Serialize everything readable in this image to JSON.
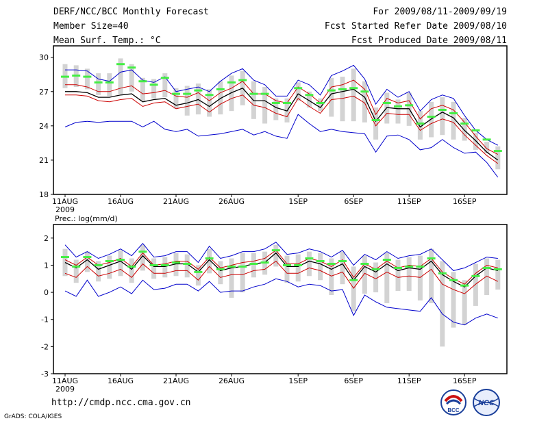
{
  "header": {
    "title": "DERF/NCC/BCC Monthly Forecast",
    "member_size": "Member Size=40",
    "variable": "Mean Surf. Temp.: °C",
    "forecast_period": "For 2009/08/11-2009/09/19",
    "started_refer": "Fcst Started Refer Date 2009/08/10",
    "produced": "Fcst Produced Date 2009/08/11"
  },
  "footer": {
    "url": "http://cmdp.ncc.cma.gov.cn",
    "grads": "GrADS: COLA/IGES",
    "logos": [
      "BCC",
      "NCC"
    ]
  },
  "colors": {
    "box": "#d3d3d3",
    "max_min": "#0000cc",
    "spread": "#cc0000",
    "mean": "#000000",
    "marker": "#44ee44"
  },
  "chart_data": [
    {
      "type": "line",
      "title": "Mean Surf. Temp.: °C",
      "days": 40,
      "x_tick_labels": [
        "11AUG",
        "16AUG",
        "21AUG",
        "26AUG",
        "1SEP",
        "6SEP",
        "11SEP",
        "16SEP"
      ],
      "x_tick_days": [
        0,
        5,
        10,
        15,
        21,
        26,
        31,
        36
      ],
      "year_label": "2009",
      "ylim": [
        18,
        31
      ],
      "yticks": [
        18,
        21,
        24,
        27,
        30
      ],
      "series": [
        {
          "name": "max",
          "values": [
            28.9,
            28.9,
            28.8,
            28.1,
            27.9,
            28.7,
            28.9,
            28.0,
            27.8,
            28.3,
            27.0,
            27.2,
            27.4,
            27.0,
            27.9,
            28.6,
            29.0,
            28.0,
            27.6,
            26.6,
            26.6,
            28.0,
            27.6,
            26.7,
            28.4,
            28.8,
            29.3,
            28.1,
            25.9,
            27.2,
            26.5,
            27.0,
            25.3,
            26.3,
            26.7,
            26.4,
            24.9,
            23.6,
            22.8,
            22.3
          ]
        },
        {
          "name": "plus_sd",
          "values": [
            27.6,
            27.6,
            27.4,
            27.0,
            27.0,
            27.3,
            27.5,
            26.8,
            26.9,
            27.1,
            26.6,
            26.5,
            26.9,
            26.2,
            26.9,
            27.3,
            27.9,
            26.8,
            26.8,
            26.2,
            26.0,
            27.4,
            26.8,
            26.0,
            27.4,
            27.6,
            28.0,
            27.2,
            25.0,
            26.4,
            26.0,
            26.2,
            24.6,
            25.5,
            25.8,
            25.4,
            24.3,
            23.1,
            22.0,
            21.5
          ]
        },
        {
          "name": "mean",
          "values": [
            27.0,
            27.0,
            26.9,
            26.5,
            26.5,
            26.7,
            26.8,
            26.1,
            26.3,
            26.4,
            25.8,
            26.0,
            26.3,
            25.7,
            26.4,
            26.9,
            27.3,
            26.2,
            26.2,
            25.6,
            25.3,
            26.8,
            26.2,
            25.6,
            26.8,
            27.0,
            27.2,
            26.5,
            24.4,
            25.6,
            25.5,
            25.5,
            23.9,
            24.6,
            25.2,
            24.7,
            23.6,
            22.7,
            21.7,
            21.0
          ]
        },
        {
          "name": "minus_sd",
          "values": [
            26.7,
            26.7,
            26.6,
            26.2,
            26.1,
            26.3,
            26.4,
            25.7,
            26.0,
            26.1,
            25.5,
            25.7,
            25.9,
            25.2,
            25.9,
            26.4,
            26.7,
            25.8,
            25.6,
            25.1,
            24.8,
            26.4,
            25.7,
            25.1,
            26.3,
            26.4,
            26.6,
            26.0,
            24.0,
            25.1,
            25.0,
            25.0,
            23.6,
            24.2,
            24.6,
            24.3,
            23.2,
            22.3,
            21.4,
            20.7
          ]
        },
        {
          "name": "min",
          "values": [
            23.9,
            24.3,
            24.4,
            24.3,
            24.4,
            24.4,
            24.4,
            23.9,
            24.4,
            23.7,
            23.5,
            23.7,
            23.1,
            23.2,
            23.3,
            23.5,
            23.7,
            23.2,
            23.5,
            23.1,
            22.9,
            25.0,
            24.2,
            23.5,
            23.7,
            23.5,
            23.4,
            23.3,
            21.7,
            23.1,
            23.2,
            22.8,
            21.9,
            22.1,
            22.8,
            22.1,
            21.6,
            21.7,
            20.8,
            19.5
          ]
        },
        {
          "name": "observed_marker",
          "values": [
            28.3,
            28.4,
            28.3,
            27.8,
            27.8,
            29.4,
            29.1,
            27.9,
            27.6,
            28.2,
            26.8,
            26.8,
            27.1,
            26.7,
            27.2,
            27.8,
            28.0,
            26.8,
            26.8,
            26.0,
            26.0,
            27.3,
            26.7,
            26.0,
            27.1,
            27.2,
            27.3,
            27.0,
            24.5,
            26.0,
            25.7,
            25.8,
            24.2,
            24.8,
            25.4,
            25.1,
            24.2,
            23.6,
            22.8,
            21.8
          ]
        }
      ],
      "box_ranges": [
        [
          27.3,
          29.4
        ],
        [
          27.4,
          29.3
        ],
        [
          27.2,
          29.0
        ],
        [
          26.7,
          28.6
        ],
        [
          26.6,
          28.6
        ],
        [
          26.8,
          29.9
        ],
        [
          27.0,
          29.4
        ],
        [
          26.2,
          28.2
        ],
        [
          26.4,
          28.1
        ],
        [
          26.5,
          28.6
        ],
        [
          25.5,
          27.3
        ],
        [
          24.9,
          27.5
        ],
        [
          25.0,
          27.7
        ],
        [
          24.8,
          27.2
        ],
        [
          25.0,
          27.9
        ],
        [
          25.3,
          28.4
        ],
        [
          25.8,
          28.8
        ],
        [
          24.6,
          27.9
        ],
        [
          24.2,
          27.4
        ],
        [
          24.5,
          26.4
        ],
        [
          24.3,
          26.4
        ],
        [
          26.2,
          27.8
        ],
        [
          25.6,
          27.0
        ],
        [
          25.3,
          26.4
        ],
        [
          24.8,
          28.2
        ],
        [
          24.4,
          28.3
        ],
        [
          24.4,
          29.0
        ],
        [
          24.3,
          27.9
        ],
        [
          22.8,
          25.6
        ],
        [
          24.2,
          26.9
        ],
        [
          24.2,
          26.3
        ],
        [
          24.0,
          26.9
        ],
        [
          22.8,
          25.3
        ],
        [
          23.0,
          26.1
        ],
        [
          23.2,
          26.5
        ],
        [
          22.8,
          26.1
        ],
        [
          22.7,
          24.7
        ],
        [
          21.9,
          23.4
        ],
        [
          21.6,
          22.6
        ],
        [
          20.2,
          22.2
        ]
      ]
    },
    {
      "type": "line",
      "title": "Prec.: log(mm/d)",
      "days": 40,
      "x_tick_labels": [
        "11AUG",
        "16AUG",
        "21AUG",
        "26AUG",
        "1SEP",
        "6SEP",
        "11SEP",
        "16SEP"
      ],
      "x_tick_days": [
        0,
        5,
        10,
        15,
        21,
        26,
        31,
        36
      ],
      "year_label": "2009",
      "ylim": [
        -3,
        2.5
      ],
      "yticks": [
        -3,
        -2,
        -1,
        0,
        1,
        2
      ],
      "series": [
        {
          "name": "max",
          "values": [
            1.75,
            1.3,
            1.5,
            1.25,
            1.4,
            1.6,
            1.35,
            1.8,
            1.3,
            1.35,
            1.5,
            1.5,
            1.1,
            1.7,
            1.25,
            1.35,
            1.5,
            1.5,
            1.6,
            1.85,
            1.4,
            1.45,
            1.6,
            1.5,
            1.3,
            1.55,
            1.0,
            1.4,
            1.2,
            1.5,
            1.25,
            1.35,
            1.4,
            1.6,
            1.2,
            0.8,
            0.9,
            1.1,
            1.3,
            1.25
          ]
        },
        {
          "name": "plus_sd",
          "values": [
            1.2,
            1.0,
            1.3,
            1.0,
            1.1,
            1.25,
            0.95,
            1.45,
            1.0,
            1.05,
            1.15,
            1.15,
            0.85,
            1.3,
            0.9,
            1.0,
            1.1,
            1.15,
            1.25,
            1.55,
            1.05,
            1.05,
            1.25,
            1.15,
            0.95,
            1.2,
            0.55,
            1.05,
            0.85,
            1.15,
            0.9,
            1.0,
            0.95,
            1.25,
            0.75,
            0.5,
            0.3,
            0.7,
            1.0,
            0.9
          ]
        },
        {
          "name": "mean",
          "values": [
            1.1,
            0.9,
            1.2,
            0.85,
            1.0,
            1.15,
            0.85,
            1.35,
            0.95,
            0.95,
            1.05,
            1.05,
            0.75,
            1.2,
            0.8,
            0.9,
            0.95,
            1.05,
            1.1,
            1.45,
            0.95,
            0.95,
            1.15,
            1.05,
            0.85,
            1.05,
            0.45,
            0.95,
            0.75,
            1.05,
            0.8,
            0.9,
            0.85,
            1.15,
            0.65,
            0.4,
            0.2,
            0.6,
            0.9,
            0.8
          ]
        },
        {
          "name": "minus_sd",
          "values": [
            0.7,
            0.55,
            0.95,
            0.6,
            0.7,
            0.85,
            0.55,
            1.05,
            0.7,
            0.7,
            0.8,
            0.8,
            0.45,
            0.95,
            0.55,
            0.65,
            0.65,
            0.8,
            0.85,
            1.15,
            0.7,
            0.7,
            0.9,
            0.8,
            0.6,
            0.75,
            0.15,
            0.7,
            0.5,
            0.75,
            0.55,
            0.6,
            0.55,
            0.85,
            0.3,
            0.1,
            -0.05,
            0.3,
            0.6,
            0.4
          ]
        },
        {
          "name": "min",
          "values": [
            0.05,
            -0.15,
            0.45,
            -0.15,
            0.0,
            0.2,
            -0.05,
            0.45,
            0.1,
            0.15,
            0.3,
            0.3,
            0.05,
            0.4,
            0.0,
            0.05,
            0.05,
            0.2,
            0.3,
            0.5,
            0.4,
            0.2,
            0.3,
            0.25,
            0.05,
            0.1,
            -0.85,
            -0.1,
            -0.35,
            -0.55,
            -0.6,
            -0.65,
            -0.7,
            -0.2,
            -0.8,
            -1.1,
            -1.2,
            -0.95,
            -0.8,
            -0.95
          ]
        },
        {
          "name": "observed_marker",
          "values": [
            1.3,
            0.95,
            1.3,
            1.0,
            1.15,
            1.2,
            0.95,
            1.5,
            1.0,
            1.0,
            1.1,
            1.05,
            0.75,
            1.25,
            0.85,
            0.95,
            0.95,
            1.05,
            1.1,
            1.55,
            1.0,
            1.0,
            1.25,
            1.15,
            1.05,
            1.15,
            0.45,
            1.05,
            0.85,
            1.2,
            0.9,
            0.95,
            0.95,
            1.25,
            0.7,
            0.45,
            0.25,
            0.6,
            0.9,
            0.85
          ]
        }
      ],
      "box_ranges": [
        [
          0.6,
          1.6
        ],
        [
          0.35,
          1.2
        ],
        [
          0.75,
          1.5
        ],
        [
          0.4,
          1.15
        ],
        [
          0.5,
          1.35
        ],
        [
          0.6,
          1.55
        ],
        [
          0.35,
          1.25
        ],
        [
          0.8,
          1.75
        ],
        [
          0.5,
          1.25
        ],
        [
          0.55,
          1.3
        ],
        [
          0.6,
          1.45
        ],
        [
          0.55,
          1.4
        ],
        [
          0.25,
          1.0
        ],
        [
          0.7,
          1.6
        ],
        [
          0.3,
          1.15
        ],
        [
          -0.2,
          1.25
        ],
        [
          0.0,
          1.45
        ],
        [
          0.55,
          1.45
        ],
        [
          0.65,
          1.5
        ],
        [
          0.95,
          1.75
        ],
        [
          0.35,
          1.35
        ],
        [
          0.4,
          1.4
        ],
        [
          0.6,
          1.5
        ],
        [
          0.45,
          1.45
        ],
        [
          -0.1,
          1.25
        ],
        [
          0.3,
          1.5
        ],
        [
          -0.7,
          0.95
        ],
        [
          -0.05,
          1.35
        ],
        [
          0.0,
          1.1
        ],
        [
          -0.4,
          1.45
        ],
        [
          0.05,
          1.2
        ],
        [
          0.05,
          1.3
        ],
        [
          -0.3,
          1.35
        ],
        [
          -0.4,
          1.6
        ],
        [
          -2.0,
          1.15
        ],
        [
          -1.3,
          0.75
        ],
        [
          -1.2,
          0.45
        ],
        [
          -0.5,
          1.05
        ],
        [
          -0.1,
          1.25
        ],
        [
          0.1,
          1.2
        ]
      ]
    }
  ]
}
